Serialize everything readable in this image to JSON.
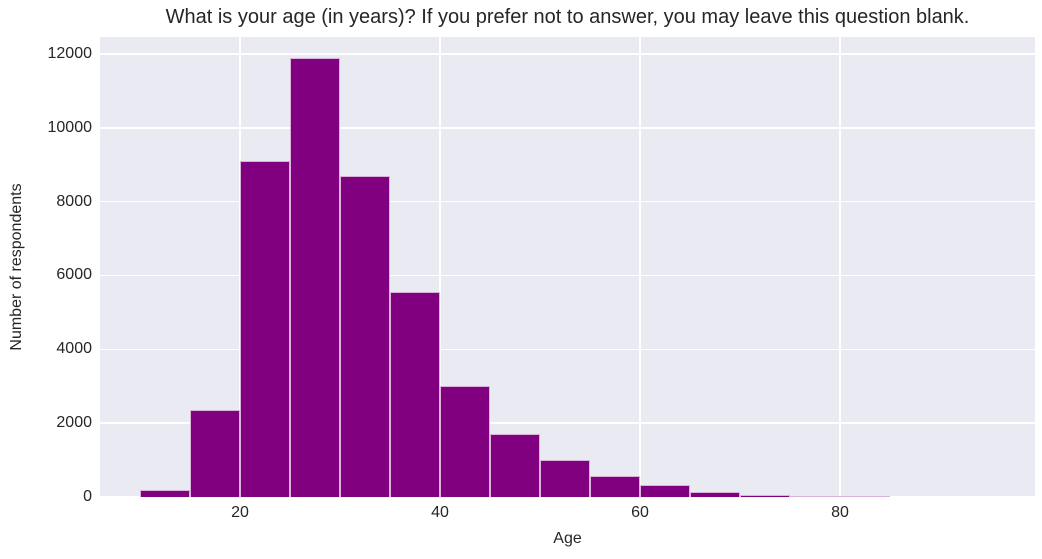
{
  "chart_data": {
    "type": "bar",
    "subtype": "histogram",
    "title": "What is your age (in years)? If you prefer not to answer, you may leave this question blank.",
    "xlabel": "Age",
    "ylabel": "Number of respondents",
    "bins": [
      {
        "range": [
          10,
          15
        ],
        "count": 180
      },
      {
        "range": [
          15,
          20
        ],
        "count": 2350
      },
      {
        "range": [
          20,
          25
        ],
        "count": 9100
      },
      {
        "range": [
          25,
          30
        ],
        "count": 11900
      },
      {
        "range": [
          30,
          35
        ],
        "count": 8700
      },
      {
        "range": [
          35,
          40
        ],
        "count": 5550
      },
      {
        "range": [
          40,
          45
        ],
        "count": 3000
      },
      {
        "range": [
          45,
          50
        ],
        "count": 1700
      },
      {
        "range": [
          50,
          55
        ],
        "count": 1000
      },
      {
        "range": [
          55,
          60
        ],
        "count": 580
      },
      {
        "range": [
          60,
          65
        ],
        "count": 320
      },
      {
        "range": [
          65,
          70
        ],
        "count": 130
      },
      {
        "range": [
          70,
          75
        ],
        "count": 60
      },
      {
        "range": [
          75,
          80
        ],
        "count": 25
      },
      {
        "range": [
          80,
          85
        ],
        "count": 10
      }
    ],
    "xticks": [
      20,
      40,
      60,
      80
    ],
    "yticks": [
      0,
      2000,
      4000,
      6000,
      8000,
      10000,
      12000
    ],
    "xlim": [
      6,
      99.5
    ],
    "ylim": [
      0,
      12460
    ],
    "grid": "both",
    "legend_position": "none",
    "colors": {
      "bar_fill": "#800080",
      "bar_edge": "rgba(255,255,255,0.7)",
      "plot_background": "#eaeaf2",
      "grid_line": "#ffffff",
      "figure_background": "#ffffff",
      "text": "#262626"
    }
  }
}
